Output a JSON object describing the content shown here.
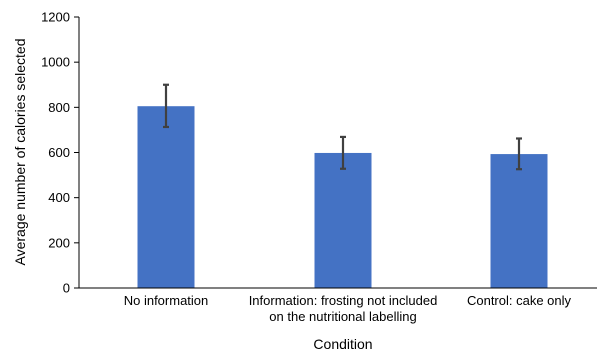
{
  "chart_data": {
    "type": "bar",
    "title": "",
    "xlabel": "Condition",
    "ylabel": "Average number of calories selected",
    "ylim": [
      0,
      1200
    ],
    "yticks": [
      0,
      200,
      400,
      600,
      800,
      1000,
      1200
    ],
    "categories": [
      [
        "No information"
      ],
      [
        "Information: frosting not included",
        "on the nutritional labelling"
      ],
      [
        "Control: cake only"
      ]
    ],
    "values": [
      805,
      598,
      593
    ],
    "error_low": [
      713,
      528,
      526
    ],
    "error_high": [
      900,
      669,
      662
    ],
    "bar_color": "#4472C4",
    "error_bar_color": "#404040",
    "grid": false,
    "legend": "none"
  }
}
